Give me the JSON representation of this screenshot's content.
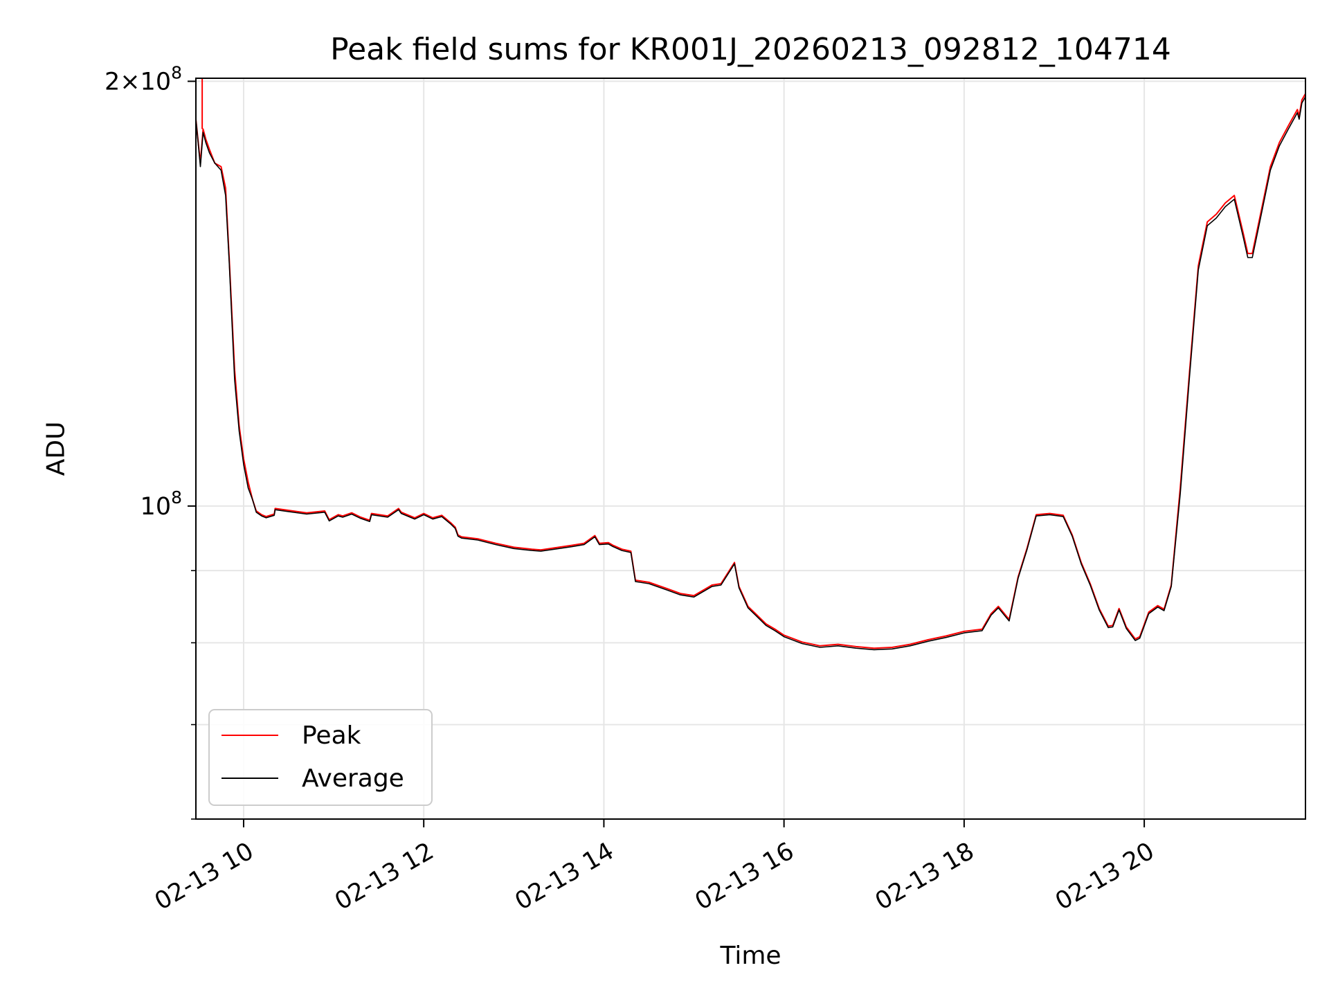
{
  "chart_data": {
    "type": "line",
    "title": "Peak field sums for KR001J_20260213_092812_104714",
    "xlabel": "Time",
    "ylabel": "ADU",
    "x_unit": "hours (2026-02-13, decimal hour of day)",
    "xlim": [
      9.47,
      21.79
    ],
    "ylim": [
      60000000.0,
      201000000.0
    ],
    "yscale": "log",
    "grid": true,
    "legend_position": "lower left",
    "x_ticks": [
      {
        "value": 10,
        "label": "02-13 10"
      },
      {
        "value": 12,
        "label": "02-13 12"
      },
      {
        "value": 14,
        "label": "02-13 14"
      },
      {
        "value": 16,
        "label": "02-13 16"
      },
      {
        "value": 18,
        "label": "02-13 18"
      },
      {
        "value": 20,
        "label": "02-13 20"
      }
    ],
    "y_major_ticks": [
      {
        "value": 100000000.0,
        "base": "10",
        "exp": "8",
        "mant": ""
      },
      {
        "value": 200000000.0,
        "base": "10",
        "exp": "8",
        "mant": "2"
      }
    ],
    "y_minor_ticks": [
      60000000.0,
      70000000.0,
      80000000.0,
      90000000.0
    ],
    "x": [
      9.47,
      9.52,
      9.55,
      9.58,
      9.62,
      9.68,
      9.75,
      9.8,
      9.84,
      9.9,
      9.95,
      10.0,
      10.05,
      10.1,
      10.14,
      10.2,
      10.25,
      10.34,
      10.35,
      10.5,
      10.7,
      10.9,
      10.95,
      11.05,
      11.1,
      11.2,
      11.3,
      11.4,
      11.42,
      11.6,
      11.72,
      11.75,
      11.9,
      12.0,
      12.1,
      12.2,
      12.3,
      12.35,
      12.38,
      12.42,
      12.6,
      12.8,
      13.0,
      13.2,
      13.3,
      13.5,
      13.65,
      13.78,
      13.9,
      13.95,
      14.05,
      14.1,
      14.2,
      14.3,
      14.35,
      14.5,
      14.7,
      14.85,
      15.0,
      15.2,
      15.3,
      15.45,
      15.5,
      15.6,
      15.7,
      15.8,
      15.9,
      16.0,
      16.2,
      16.4,
      16.6,
      16.8,
      17.0,
      17.2,
      17.4,
      17.6,
      17.8,
      18.0,
      18.2,
      18.3,
      18.38,
      18.5,
      18.6,
      18.7,
      18.8,
      18.95,
      19.1,
      19.2,
      19.3,
      19.4,
      19.5,
      19.6,
      19.65,
      19.72,
      19.8,
      19.9,
      19.95,
      20.05,
      20.15,
      20.22,
      20.3,
      20.4,
      20.5,
      20.6,
      20.7,
      20.8,
      20.9,
      21.0,
      21.1,
      21.15,
      21.2,
      21.3,
      21.4,
      21.5,
      21.6,
      21.7,
      21.72,
      21.75,
      21.79
    ],
    "series": [
      {
        "name": "Peak",
        "color": "#ff0000",
        "values": [
          188000000.0,
          175000000.0,
          185000000.0,
          182000000.0,
          179000000.0,
          175000000.0,
          174000000.0,
          168000000.0,
          150000000.0,
          125000000.0,
          114000000.0,
          108000000.0,
          104000000.0,
          101000000.0,
          99200000.0,
          98600000.0,
          98300000.0,
          98700000.0,
          99600000.0,
          99300000.0,
          98900000.0,
          99200000.0,
          97800000.0,
          98600000.0,
          98400000.0,
          98900000.0,
          98200000.0,
          97700000.0,
          98800000.0,
          98400000.0,
          99600000.0,
          99000000.0,
          98100000.0,
          98800000.0,
          98100000.0,
          98500000.0,
          97300000.0,
          96600000.0,
          95400000.0,
          95100000.0,
          94800000.0,
          94100000.0,
          93500000.0,
          93200000.0,
          93100000.0,
          93500000.0,
          93800000.0,
          94100000.0,
          95300000.0,
          94100000.0,
          94200000.0,
          93800000.0,
          93200000.0,
          92900000.0,
          88600000.0,
          88300000.0,
          87400000.0,
          86700000.0,
          86400000.0,
          87900000.0,
          88100000.0,
          91200000.0,
          87700000.0,
          84900000.0,
          83700000.0,
          82500000.0,
          81800000.0,
          81000000.0,
          80100000.0,
          79600000.0,
          79800000.0,
          79500000.0,
          79300000.0,
          79400000.0,
          79800000.0,
          80400000.0,
          80900000.0,
          81500000.0,
          81800000.0,
          83900000.0,
          84900000.0,
          83100000.0,
          89100000.0,
          93400000.0,
          98600000.0,
          98800000.0,
          98500000.0,
          95400000.0,
          91200000.0,
          88100000.0,
          84600000.0,
          82200000.0,
          82300000.0,
          84600000.0,
          82100000.0,
          80500000.0,
          80800000.0,
          84100000.0,
          85000000.0,
          84500000.0,
          87900000.0,
          103000000.0,
          124000000.0,
          148000000.0,
          159000000.0,
          161000000.0,
          164000000.0,
          166000000.0,
          156000000.0,
          151000000.0,
          151000000.0,
          162000000.0,
          174000000.0,
          181000000.0,
          186000000.0,
          191000000.0,
          189000000.0,
          194000000.0,
          196000000.0
        ]
      },
      {
        "name": "Average",
        "color": "#000000",
        "values": [
          188000000.0,
          174000000.0,
          184000000.0,
          181000000.0,
          178000000.0,
          175000000.0,
          173000000.0,
          166000000.0,
          149000000.0,
          123000000.0,
          113000000.0,
          107000000.0,
          103000000.0,
          101000000.0,
          99000000.0,
          98400000.0,
          98100000.0,
          98500000.0,
          99400000.0,
          99100000.0,
          98700000.0,
          99000000.0,
          97600000.0,
          98400000.0,
          98200000.0,
          98700000.0,
          98000000.0,
          97500000.0,
          98600000.0,
          98200000.0,
          99400000.0,
          98800000.0,
          97900000.0,
          98600000.0,
          97900000.0,
          98300000.0,
          97100000.0,
          96400000.0,
          95200000.0,
          94900000.0,
          94600000.0,
          93900000.0,
          93300000.0,
          93000000.0,
          92900000.0,
          93300000.0,
          93600000.0,
          93900000.0,
          95100000.0,
          93900000.0,
          94000000.0,
          93600000.0,
          93000000.0,
          92700000.0,
          88400000.0,
          88100000.0,
          87200000.0,
          86500000.0,
          86200000.0,
          87700000.0,
          87900000.0,
          91000000.0,
          87500000.0,
          84700000.0,
          83500000.0,
          82300000.0,
          81600000.0,
          80800000.0,
          79900000.0,
          79400000.0,
          79600000.0,
          79300000.0,
          79100000.0,
          79200000.0,
          79600000.0,
          80200000.0,
          80700000.0,
          81300000.0,
          81600000.0,
          83700000.0,
          84700000.0,
          82900000.0,
          88900000.0,
          93200000.0,
          98400000.0,
          98600000.0,
          98300000.0,
          95200000.0,
          91000000.0,
          87900000.0,
          84400000.0,
          82000000.0,
          82100000.0,
          84400000.0,
          81900000.0,
          80300000.0,
          80600000.0,
          83900000.0,
          84800000.0,
          84300000.0,
          87700000.0,
          102000000.0,
          123000000.0,
          147000000.0,
          158000000.0,
          160000000.0,
          163000000.0,
          165000000.0,
          155000000.0,
          150000000.0,
          150000000.0,
          161000000.0,
          173000000.0,
          180000000.0,
          185000000.0,
          190000000.0,
          188000000.0,
          193000000.0,
          195000000.0
        ]
      }
    ],
    "annotations": [
      {
        "x": 9.54,
        "series": "Peak",
        "label": "",
        "value": 201000000.0
      }
    ]
  }
}
